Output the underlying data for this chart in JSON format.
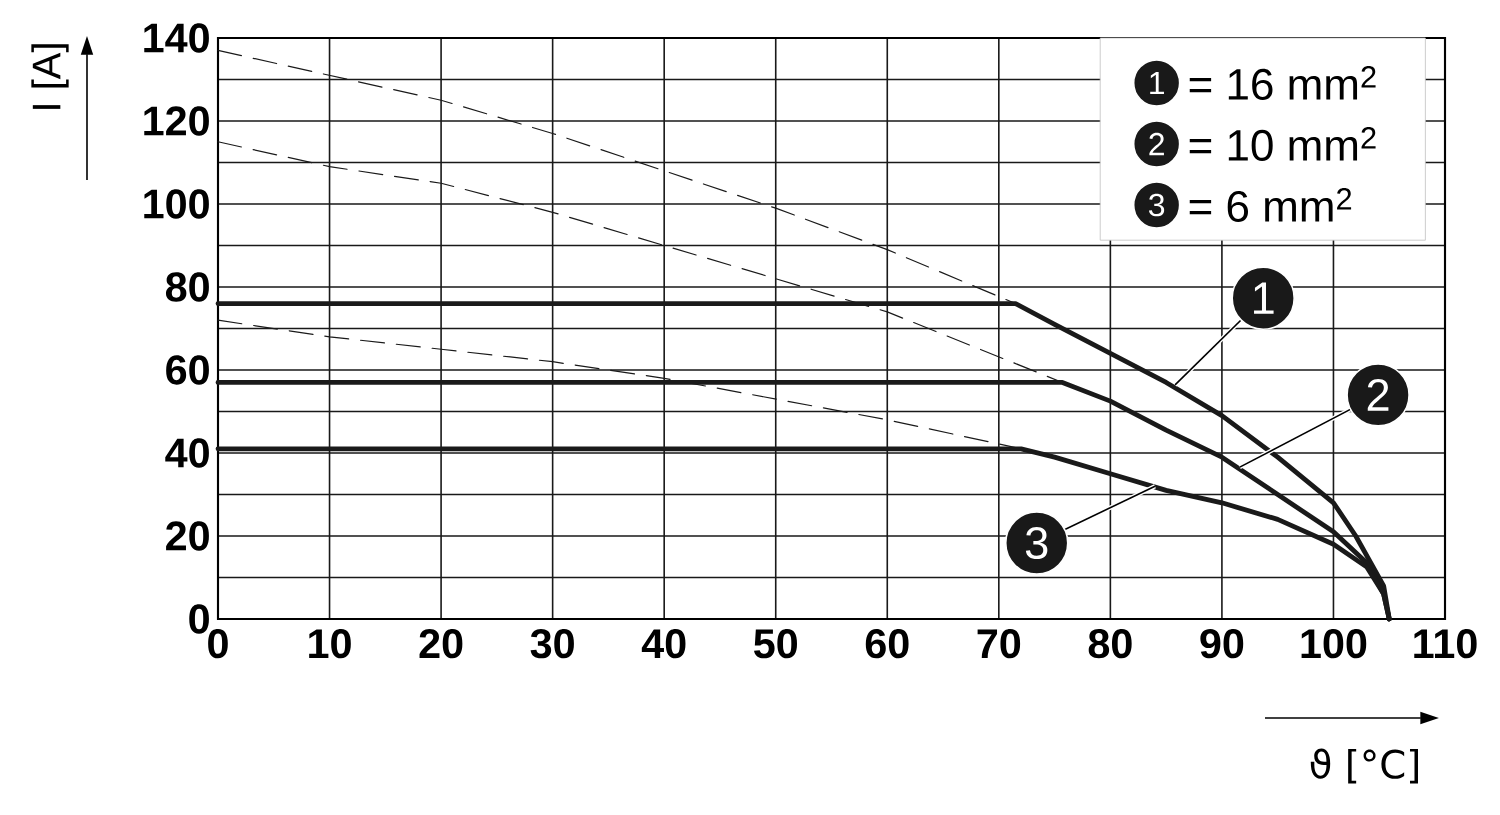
{
  "chart_data": {
    "type": "line",
    "xlabel": "ϑ [°C]",
    "ylabel": "I [A]",
    "xlim": [
      0,
      110
    ],
    "ylim": [
      0,
      140
    ],
    "xticks": [
      0,
      10,
      20,
      30,
      40,
      50,
      60,
      70,
      80,
      90,
      100,
      110
    ],
    "yticks": [
      0,
      {
        "value": 10,
        "label": null
      },
      20,
      {
        "value": 30,
        "label": null
      },
      40,
      {
        "value": 50,
        "label": null
      },
      60,
      {
        "value": 70,
        "label": null
      },
      80,
      {
        "value": 90,
        "label": null
      },
      100,
      {
        "value": 110,
        "label": null
      },
      120,
      {
        "value": 130,
        "label": null
      },
      140
    ],
    "grid": true,
    "legend": "top right",
    "marker": "none",
    "series": [
      {
        "name": "= 16 mm$^{2}$",
        "color": "#1a1a1a",
        "line_style": "solid",
        "x": [
          0,
          71.5,
          75,
          80,
          85,
          90,
          95,
          100,
          102,
          104.5,
          105
        ],
        "values": [
          76,
          76,
          71,
          64,
          57,
          49,
          39,
          28,
          20,
          8,
          0
        ]
      },
      {
        "name": "= 10 mm$^{2}$",
        "color": "#1a1a1a",
        "line_style": "solid",
        "x": [
          0,
          75.7,
          80,
          85,
          90,
          95,
          100,
          103,
          104.5,
          105
        ],
        "values": [
          57,
          57,
          52.5,
          45.5,
          39,
          30,
          21,
          13.5,
          6,
          0
        ]
      },
      {
        "name": "= 6 mm$^{2}$",
        "color": "#1a1a1a",
        "line_style": "solid",
        "x": [
          0,
          72,
          75,
          80,
          85,
          90,
          95,
          100,
          103,
          104.5,
          105
        ],
        "values": [
          41,
          41,
          39,
          35,
          31,
          28,
          24,
          18,
          12.5,
          6,
          0
        ]
      },
      {
        "color": "#1a1a1a",
        "line_style": "dashed",
        "x": [
          0,
          10,
          20,
          30,
          40,
          50,
          60,
          71.5
        ],
        "values": [
          137,
          131,
          125,
          117,
          108,
          99,
          89,
          76
        ]
      },
      {
        "color": "#1a1a1a",
        "line_style": "dashed",
        "x": [
          0,
          10,
          20,
          30,
          40,
          50,
          60,
          75.7
        ],
        "values": [
          115,
          109,
          105,
          98,
          90,
          82,
          74,
          57
        ]
      },
      {
        "color": "#1a1a1a",
        "line_style": "dashed",
        "x": [
          0,
          10,
          20,
          30,
          40,
          50,
          60,
          72
        ],
        "values": [
          72,
          68,
          65,
          62,
          58,
          53,
          48,
          41
        ]
      }
    ],
    "annotations": [
      {
        "text": "1",
        "x": 85.8,
        "y": 56.4
      },
      {
        "text": "2",
        "x": 91.6,
        "y": 36.6
      },
      {
        "text": "3",
        "x": 84,
        "y": 32
      }
    ]
  }
}
